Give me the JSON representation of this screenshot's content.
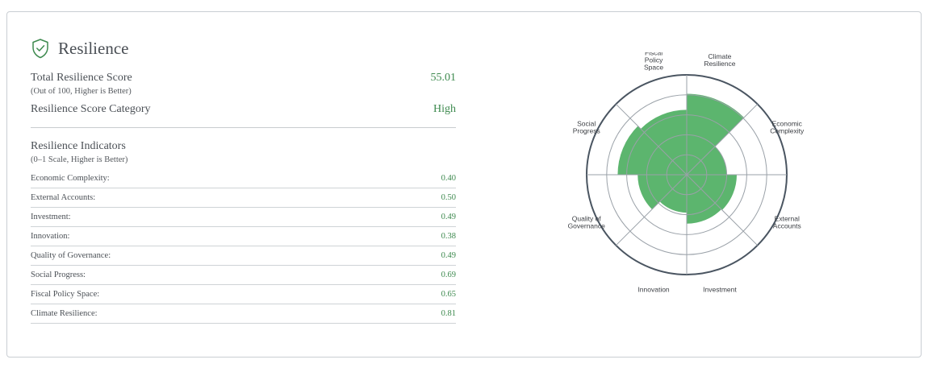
{
  "panel": {
    "title": "Resilience",
    "title_icon": "shield-check-icon",
    "total_score_label": "Total Resilience Score",
    "total_score_value": "55.01",
    "total_score_note": "(Out of 100,  Higher is Better)",
    "category_label": "Resilience Score Category",
    "category_value": "High",
    "indicators_title": "Resilience Indicators",
    "indicators_note": "(0–1 Scale, Higher is Better)",
    "indicators": [
      {
        "label": "Economic Complexity:",
        "value": "0.40"
      },
      {
        "label": "External Accounts:",
        "value": "0.50"
      },
      {
        "label": "Investment:",
        "value": "0.49"
      },
      {
        "label": "Innovation:",
        "value": "0.38"
      },
      {
        "label": "Quality of Governance:",
        "value": "0.49"
      },
      {
        "label": "Social Progress:",
        "value": "0.69"
      },
      {
        "label": "Fiscal Policy Space:",
        "value": "0.65"
      },
      {
        "label": "Climate Resilience:",
        "value": "0.81"
      }
    ]
  },
  "colors": {
    "accent_green": "#3e8a4f",
    "fill_green": "#5cb56e",
    "grid": "#9aa1a8",
    "outer_ring": "#4a5561"
  },
  "chart_data": {
    "type": "radar",
    "categories": [
      [
        "Climate",
        "Resilience"
      ],
      [
        "Economic",
        "Complexity"
      ],
      [
        "External",
        "Accounts"
      ],
      [
        "Investment"
      ],
      [
        "Innovation"
      ],
      [
        "Quality of",
        "Governance"
      ],
      [
        "Social",
        "Progress"
      ],
      [
        "Fiscal",
        "Policy",
        "Space"
      ]
    ],
    "values": [
      0.81,
      0.4,
      0.5,
      0.49,
      0.38,
      0.49,
      0.69,
      0.65
    ],
    "rlim": [
      0,
      1
    ],
    "rings": [
      0.2,
      0.4,
      0.6,
      0.8,
      1.0
    ]
  }
}
